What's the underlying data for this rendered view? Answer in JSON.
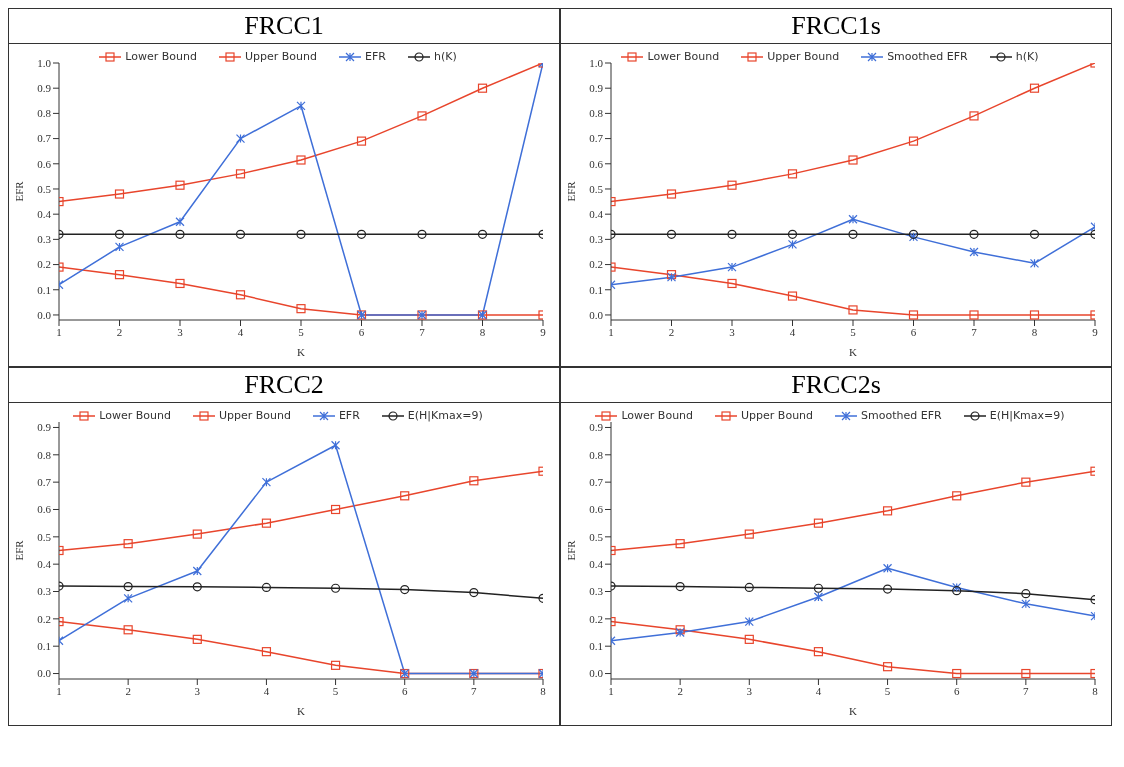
{
  "chart_data": [
    {
      "type": "line",
      "title": "FRCC1",
      "xlabel": "K",
      "ylabel": "EFR",
      "legend": "top",
      "x": [
        1,
        2,
        3,
        4,
        5,
        6,
        7,
        8,
        9
      ],
      "xlim": [
        1,
        9
      ],
      "xticks": [
        1,
        2,
        3,
        4,
        5,
        6,
        7,
        8,
        9
      ],
      "ylim": [
        -0.02,
        1.0
      ],
      "yticks": [
        {
          "value": 0,
          "label": "0.0"
        },
        {
          "value": 0.1,
          "label": "0.1"
        },
        {
          "value": 0.2,
          "label": "0.2"
        },
        {
          "value": 0.3,
          "label": "0.3"
        },
        {
          "value": 0.4,
          "label": "0.4"
        },
        {
          "value": 0.5,
          "label": "0.5"
        },
        {
          "value": 0.6,
          "label": "0.6"
        },
        {
          "value": 0.7,
          "label": "0.7"
        },
        {
          "value": 0.8,
          "label": "0.8"
        },
        {
          "value": 0.9,
          "label": "0.9"
        },
        {
          "value": 1,
          "label": "1.0"
        }
      ],
      "series": [
        {
          "name": "Lower Bound",
          "color": "#e8452c",
          "marker": "square",
          "values": [
            0.19,
            0.16,
            0.125,
            0.08,
            0.025,
            0,
            0,
            0,
            0
          ]
        },
        {
          "name": "Upper Bound",
          "color": "#e8452c",
          "marker": "square",
          "values": [
            0.45,
            0.48,
            0.515,
            0.56,
            0.615,
            0.69,
            0.79,
            0.9,
            1.0
          ]
        },
        {
          "name": "EFR",
          "color": "#3f6fd8",
          "marker": "cross",
          "values": [
            0.12,
            0.27,
            0.37,
            0.7,
            0.83,
            0,
            0,
            0,
            1.0
          ]
        },
        {
          "name": "h(K)",
          "color": "#222222",
          "marker": "circle",
          "values": [
            0.32,
            0.32,
            0.32,
            0.32,
            0.32,
            0.32,
            0.32,
            0.32,
            0.32
          ]
        }
      ]
    },
    {
      "type": "line",
      "title": "FRCC1s",
      "xlabel": "K",
      "ylabel": "EFR",
      "legend": "top",
      "x": [
        1,
        2,
        3,
        4,
        5,
        6,
        7,
        8,
        9
      ],
      "xlim": [
        1,
        9
      ],
      "xticks": [
        1,
        2,
        3,
        4,
        5,
        6,
        7,
        8,
        9
      ],
      "ylim": [
        -0.02,
        1.0
      ],
      "yticks": [
        {
          "value": 0,
          "label": "0.0"
        },
        {
          "value": 0.1,
          "label": "0.1"
        },
        {
          "value": 0.2,
          "label": "0.2"
        },
        {
          "value": 0.3,
          "label": "0.3"
        },
        {
          "value": 0.4,
          "label": "0.4"
        },
        {
          "value": 0.5,
          "label": "0.5"
        },
        {
          "value": 0.6,
          "label": "0.6"
        },
        {
          "value": 0.7,
          "label": "0.7"
        },
        {
          "value": 0.8,
          "label": "0.8"
        },
        {
          "value": 0.9,
          "label": "0.9"
        },
        {
          "value": 1,
          "label": "1.0"
        }
      ],
      "series": [
        {
          "name": "Lower Bound",
          "color": "#e8452c",
          "marker": "square",
          "values": [
            0.19,
            0.16,
            0.125,
            0.075,
            0.02,
            0,
            0,
            0,
            0
          ]
        },
        {
          "name": "Upper Bound",
          "color": "#e8452c",
          "marker": "square",
          "values": [
            0.45,
            0.48,
            0.515,
            0.56,
            0.615,
            0.69,
            0.79,
            0.9,
            1.0
          ]
        },
        {
          "name": "Smoothed EFR",
          "color": "#3f6fd8",
          "marker": "cross",
          "values": [
            0.12,
            0.15,
            0.19,
            0.28,
            0.38,
            0.31,
            0.25,
            0.205,
            0.35
          ]
        },
        {
          "name": "h(K)",
          "color": "#222222",
          "marker": "circle",
          "values": [
            0.32,
            0.32,
            0.32,
            0.32,
            0.32,
            0.32,
            0.32,
            0.32,
            0.32
          ]
        }
      ]
    },
    {
      "type": "line",
      "title": "FRCC2",
      "xlabel": "K",
      "ylabel": "EFR",
      "legend": "top",
      "x": [
        1,
        2,
        3,
        4,
        5,
        6,
        7,
        8
      ],
      "xlim": [
        1,
        8
      ],
      "xticks": [
        1,
        2,
        3,
        4,
        5,
        6,
        7,
        8
      ],
      "ylim": [
        -0.02,
        0.92
      ],
      "yticks": [
        {
          "value": 0,
          "label": "0.0"
        },
        {
          "value": 0.1,
          "label": "0.1"
        },
        {
          "value": 0.2,
          "label": "0.2"
        },
        {
          "value": 0.3,
          "label": "0.3"
        },
        {
          "value": 0.4,
          "label": "0.4"
        },
        {
          "value": 0.5,
          "label": "0.5"
        },
        {
          "value": 0.6,
          "label": "0.6"
        },
        {
          "value": 0.7,
          "label": "0.7"
        },
        {
          "value": 0.8,
          "label": "0.8"
        },
        {
          "value": 0.9,
          "label": "0.9"
        }
      ],
      "series": [
        {
          "name": "Lower Bound",
          "color": "#e8452c",
          "marker": "square",
          "values": [
            0.19,
            0.16,
            0.125,
            0.08,
            0.03,
            0,
            0,
            0
          ]
        },
        {
          "name": "Upper Bound",
          "color": "#e8452c",
          "marker": "square",
          "values": [
            0.45,
            0.475,
            0.51,
            0.55,
            0.6,
            0.65,
            0.705,
            0.74
          ]
        },
        {
          "name": "EFR",
          "color": "#3f6fd8",
          "marker": "cross",
          "values": [
            0.12,
            0.275,
            0.375,
            0.7,
            0.835,
            0,
            0,
            0
          ]
        },
        {
          "name": "E(H|Kmax=9)",
          "color": "#222222",
          "marker": "circle",
          "values": [
            0.32,
            0.318,
            0.317,
            0.315,
            0.312,
            0.307,
            0.296,
            0.275
          ]
        }
      ]
    },
    {
      "type": "line",
      "title": "FRCC2s",
      "xlabel": "K",
      "ylabel": "EFR",
      "legend": "top",
      "x": [
        1,
        2,
        3,
        4,
        5,
        6,
        7,
        8
      ],
      "xlim": [
        1,
        8
      ],
      "xticks": [
        1,
        2,
        3,
        4,
        5,
        6,
        7,
        8
      ],
      "ylim": [
        -0.02,
        0.92
      ],
      "yticks": [
        {
          "value": 0,
          "label": "0.0"
        },
        {
          "value": 0.1,
          "label": "0.1"
        },
        {
          "value": 0.2,
          "label": "0.2"
        },
        {
          "value": 0.3,
          "label": "0.3"
        },
        {
          "value": 0.4,
          "label": "0.4"
        },
        {
          "value": 0.5,
          "label": "0.5"
        },
        {
          "value": 0.6,
          "label": "0.6"
        },
        {
          "value": 0.7,
          "label": "0.7"
        },
        {
          "value": 0.8,
          "label": "0.8"
        },
        {
          "value": 0.9,
          "label": "0.9"
        }
      ],
      "series": [
        {
          "name": "Lower Bound",
          "color": "#e8452c",
          "marker": "square",
          "values": [
            0.19,
            0.16,
            0.125,
            0.08,
            0.025,
            0,
            0,
            0
          ]
        },
        {
          "name": "Upper Bound",
          "color": "#e8452c",
          "marker": "square",
          "values": [
            0.45,
            0.475,
            0.51,
            0.55,
            0.595,
            0.65,
            0.7,
            0.74
          ]
        },
        {
          "name": "Smoothed EFR",
          "color": "#3f6fd8",
          "marker": "cross",
          "values": [
            0.12,
            0.15,
            0.19,
            0.28,
            0.385,
            0.315,
            0.255,
            0.21
          ]
        },
        {
          "name": "E(H|Kmax=9)",
          "color": "#222222",
          "marker": "circle",
          "values": [
            0.32,
            0.318,
            0.315,
            0.312,
            0.309,
            0.303,
            0.292,
            0.27
          ]
        }
      ]
    }
  ]
}
